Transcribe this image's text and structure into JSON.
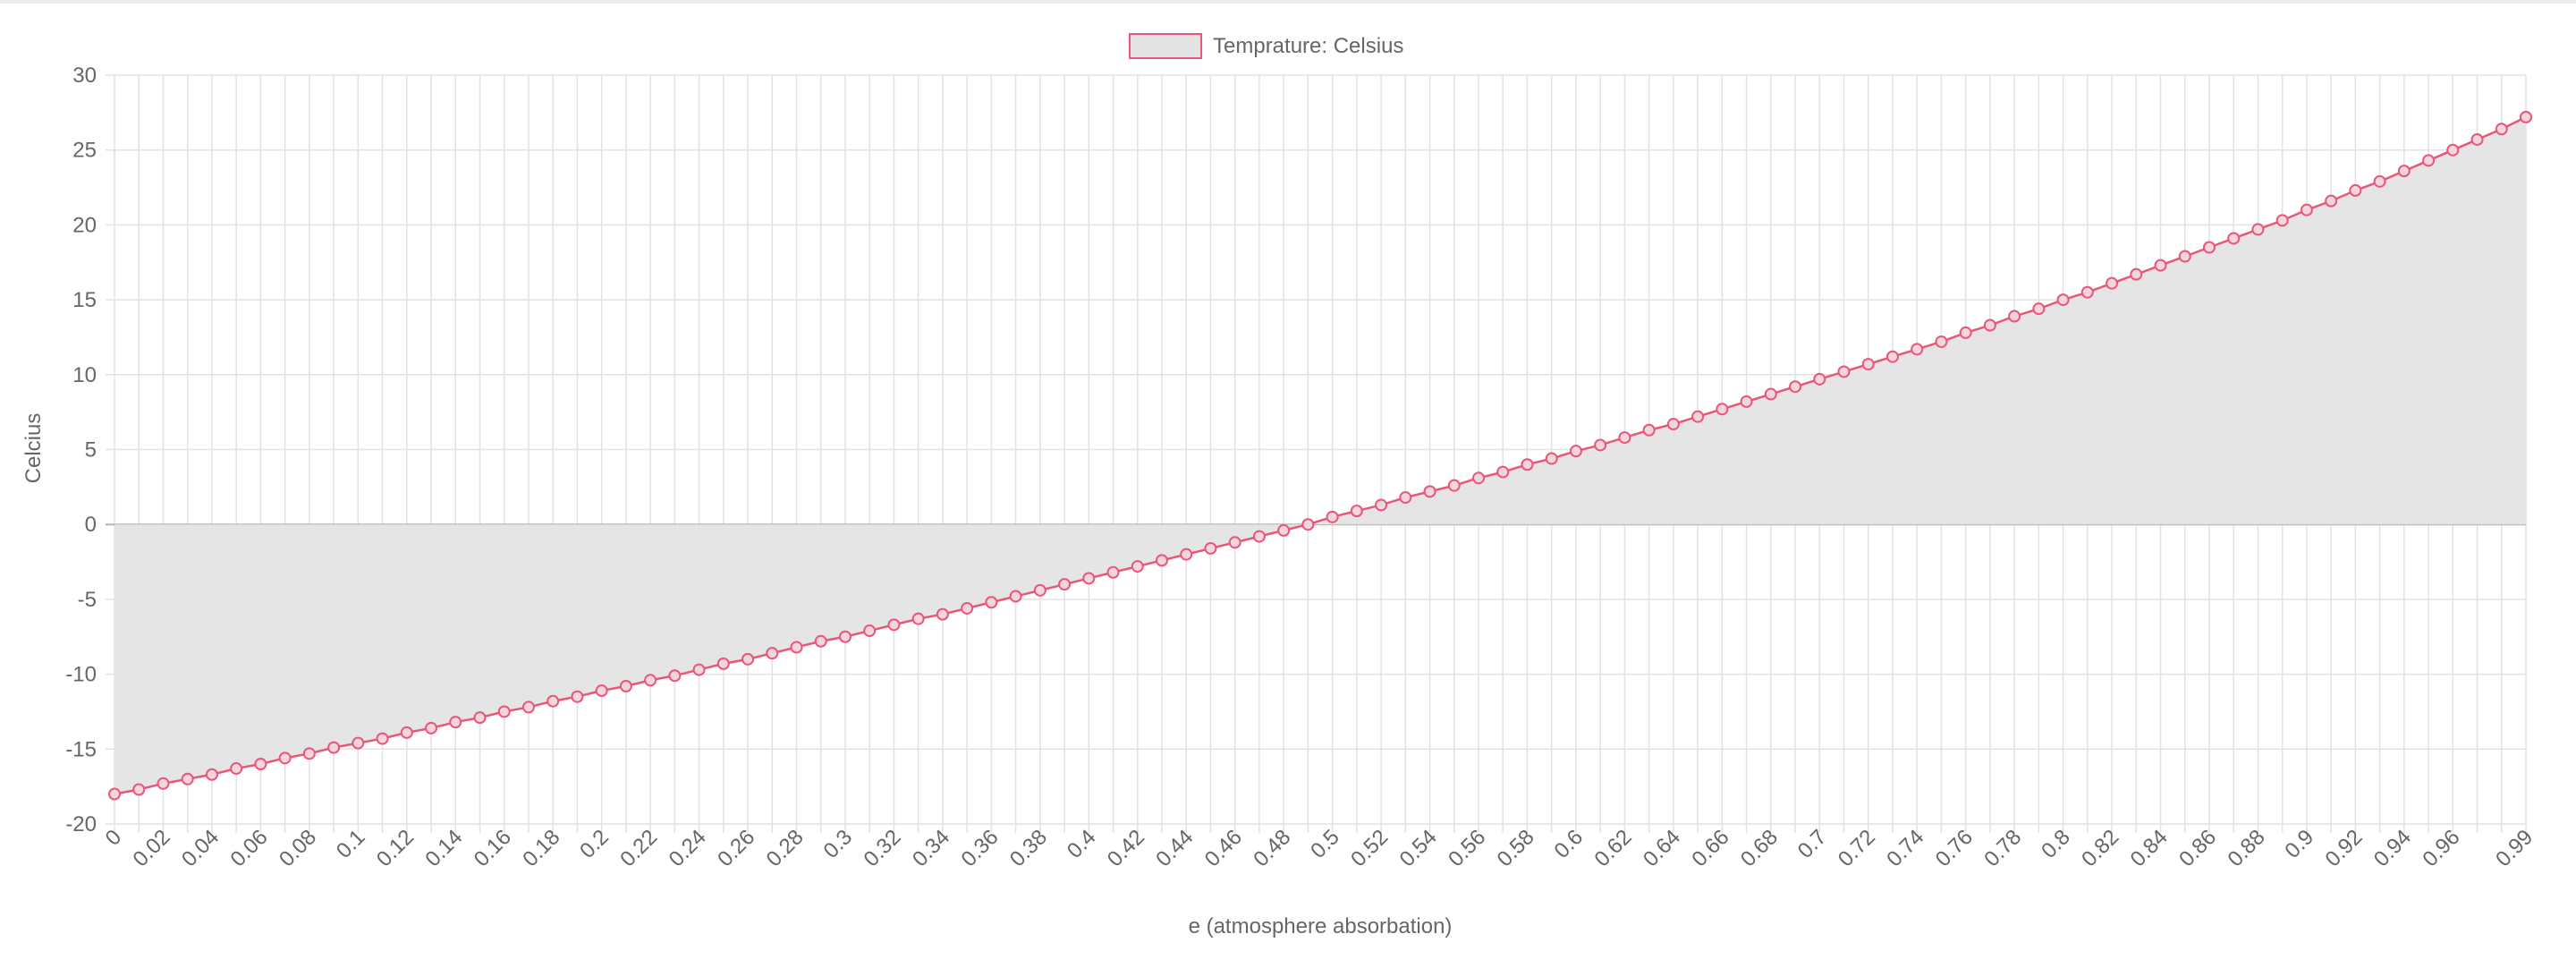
{
  "chart_data": {
    "type": "line",
    "fill": true,
    "legend": {
      "position": "top",
      "label": "Temprature: Celsius"
    },
    "xlabel": "e (atmosphere absorbation)",
    "ylabel": "Celcius",
    "ylim": [
      -20,
      30
    ],
    "yticks": [
      "30",
      "25",
      "20",
      "15",
      "10",
      "5",
      "0",
      "-5",
      "-10",
      "-15",
      "-20"
    ],
    "x": [
      0,
      0.01,
      0.02,
      0.03,
      0.04,
      0.05,
      0.06,
      0.07,
      0.08,
      0.09,
      0.1,
      0.11,
      0.12,
      0.13,
      0.14,
      0.15,
      0.16,
      0.17,
      0.18,
      0.19,
      0.2,
      0.21,
      0.22,
      0.23,
      0.24,
      0.25,
      0.26,
      0.27,
      0.28,
      0.29,
      0.3,
      0.31,
      0.32,
      0.33,
      0.34,
      0.35,
      0.36,
      0.37,
      0.38,
      0.39,
      0.4,
      0.41,
      0.42,
      0.43,
      0.44,
      0.45,
      0.46,
      0.47,
      0.48,
      0.49,
      0.5,
      0.51,
      0.52,
      0.53,
      0.54,
      0.55,
      0.56,
      0.57,
      0.58,
      0.59,
      0.6,
      0.61,
      0.62,
      0.63,
      0.64,
      0.65,
      0.66,
      0.67,
      0.68,
      0.69,
      0.7,
      0.71,
      0.72,
      0.73,
      0.74,
      0.75,
      0.76,
      0.77,
      0.78,
      0.79,
      0.8,
      0.81,
      0.82,
      0.83,
      0.84,
      0.85,
      0.86,
      0.87,
      0.88,
      0.89,
      0.9,
      0.91,
      0.92,
      0.93,
      0.94,
      0.95,
      0.96,
      0.97,
      0.98,
      0.99
    ],
    "xtick_labels": [
      "0",
      "0.02",
      "0.04",
      "0.06",
      "0.08",
      "0.1",
      "0.12",
      "0.14",
      "0.16",
      "0.18",
      "0.2",
      "0.22",
      "0.24",
      "0.26",
      "0.28",
      "0.3",
      "0.32",
      "0.34",
      "0.36",
      "0.38",
      "0.4",
      "0.42",
      "0.44",
      "0.46",
      "0.48",
      "0.5",
      "0.52",
      "0.54",
      "0.56",
      "0.58",
      "0.6",
      "0.62",
      "0.64",
      "0.66",
      "0.68",
      "0.7",
      "0.72",
      "0.74",
      "0.76",
      "0.78",
      "0.8",
      "0.82",
      "0.84",
      "0.86",
      "0.88",
      "0.9",
      "0.92",
      "0.94",
      "0.96",
      "0.99"
    ],
    "series": [
      {
        "name": "Temprature: Celsius",
        "values": [
          -18.0,
          -17.7,
          -17.3,
          -17.0,
          -16.7,
          -16.3,
          -16.0,
          -15.6,
          -15.3,
          -14.9,
          -14.6,
          -14.3,
          -13.9,
          -13.6,
          -13.2,
          -12.9,
          -12.5,
          -12.2,
          -11.8,
          -11.5,
          -11.1,
          -10.8,
          -10.4,
          -10.1,
          -9.7,
          -9.3,
          -9.0,
          -8.6,
          -8.2,
          -7.8,
          -7.5,
          -7.1,
          -6.7,
          -6.3,
          -6.0,
          -5.6,
          -5.2,
          -4.8,
          -4.4,
          -4.0,
          -3.6,
          -3.2,
          -2.8,
          -2.4,
          -2.0,
          -1.6,
          -1.2,
          -0.8,
          -0.4,
          0.0,
          0.5,
          0.9,
          1.3,
          1.8,
          2.2,
          2.6,
          3.1,
          3.5,
          4.0,
          4.4,
          4.9,
          5.3,
          5.8,
          6.3,
          6.7,
          7.2,
          7.7,
          8.2,
          8.7,
          9.2,
          9.7,
          10.2,
          10.7,
          11.2,
          11.7,
          12.2,
          12.8,
          13.3,
          13.9,
          14.4,
          15.0,
          15.5,
          16.1,
          16.7,
          17.3,
          17.9,
          18.5,
          19.1,
          19.7,
          20.3,
          21.0,
          21.6,
          22.3,
          22.9,
          23.6,
          24.3,
          25.0,
          25.7,
          26.4,
          27.2
        ],
        "line_color": "#e8577a",
        "fill_color": "#e4e4e4"
      }
    ],
    "grid": true
  }
}
